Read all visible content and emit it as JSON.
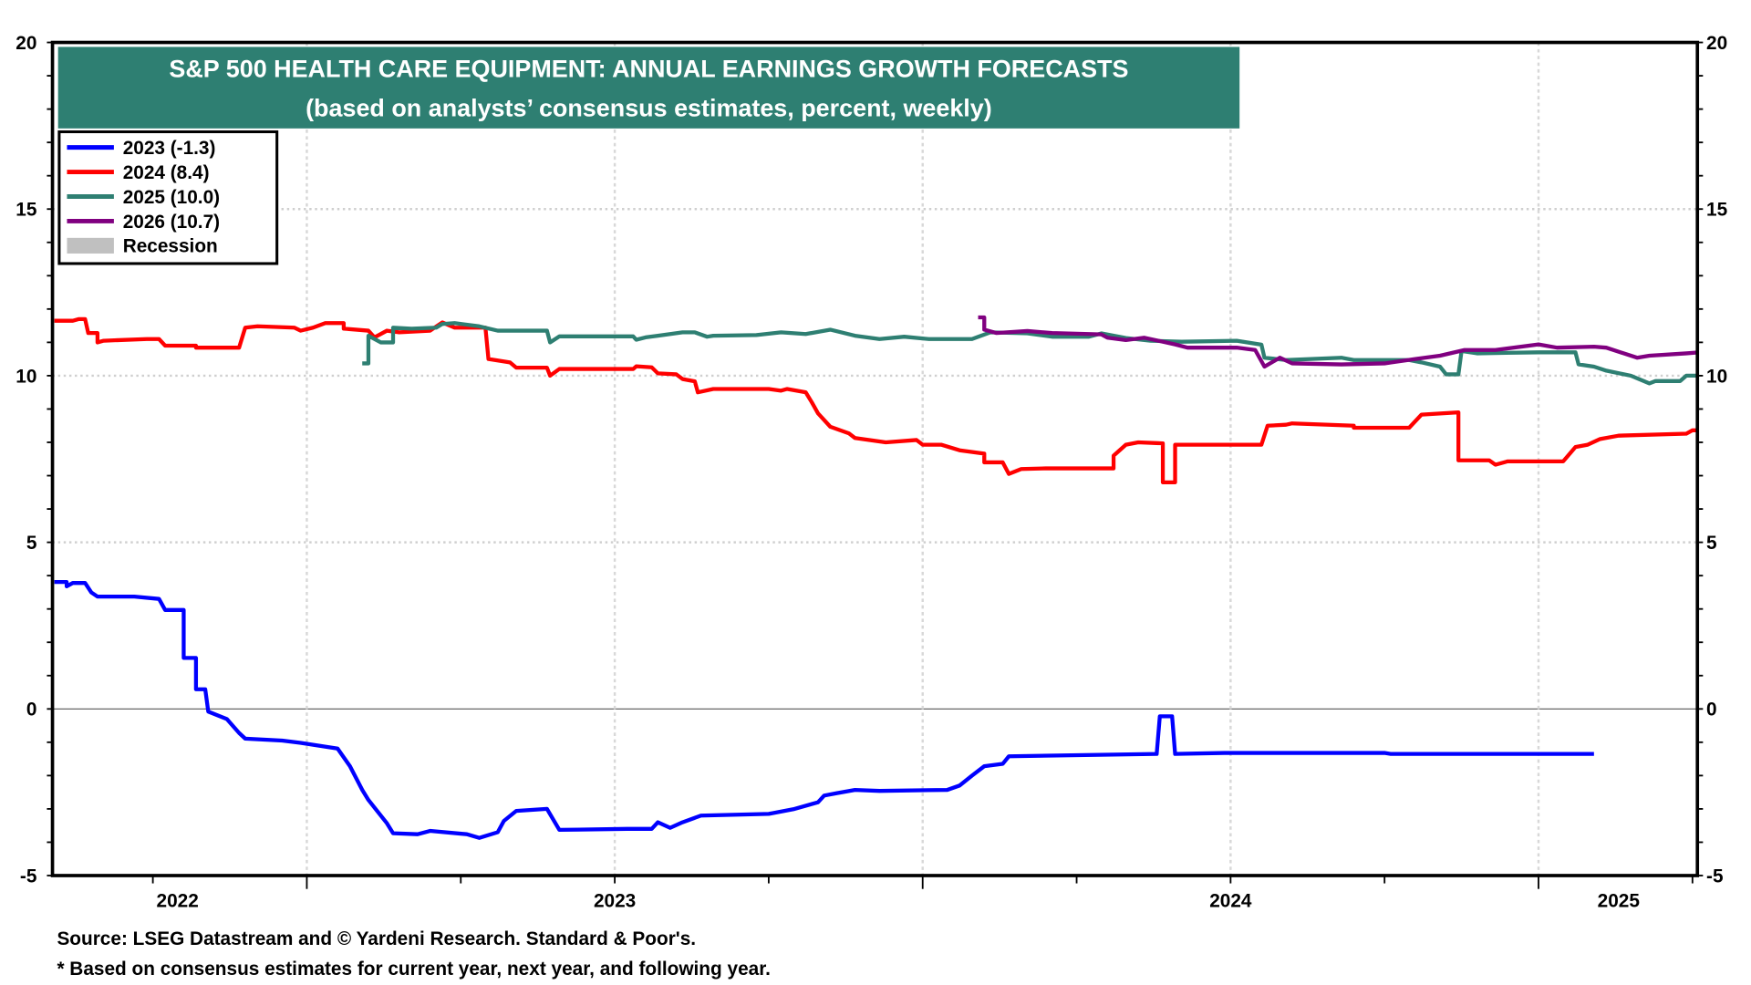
{
  "chart_data": {
    "type": "line",
    "title": "S&P 500 HEALTH CARE EQUIPMENT: ANNUAL EARNINGS GROWTH FORECASTS",
    "subtitle": "(based on analysts’ consensus estimates, percent, weekly)",
    "xlabel": "",
    "ylabel": "",
    "xlim": [
      2022.587,
      2025.258
    ],
    "ylim": [
      -5,
      20
    ],
    "yticks": [
      "20",
      "15",
      "10",
      "5",
      "0",
      "-5"
    ],
    "ytick_values": [
      20,
      15,
      10,
      5,
      0,
      -5
    ],
    "xtick_labels": [
      {
        "label": "2022",
        "at": 2022.79
      },
      {
        "label": "2023",
        "at": 2023.5
      },
      {
        "label": "2024",
        "at": 2024.5
      },
      {
        "label": "2025",
        "at": 2025.13
      }
    ],
    "legend": {
      "placement": "top-left",
      "entries": [
        {
          "label": "2023 (-1.3)",
          "color": "#0000ff"
        },
        {
          "label": "2024 (8.4)",
          "color": "#ff0000"
        },
        {
          "label": "2025 (10.0)",
          "color": "#2e7f72"
        },
        {
          "label": "2026 (10.7)",
          "color": "#800080"
        },
        {
          "label": "Recession",
          "color": "#c0c0c0"
        }
      ]
    },
    "series": [
      {
        "name": "2023",
        "color": "#0000ff",
        "points": [
          [
            2022.59,
            3.81
          ],
          [
            2022.61,
            3.81
          ],
          [
            2022.61,
            3.68
          ],
          [
            2022.62,
            3.78
          ],
          [
            2022.64,
            3.78
          ],
          [
            2022.65,
            3.5
          ],
          [
            2022.66,
            3.37
          ],
          [
            2022.72,
            3.37
          ],
          [
            2022.76,
            3.3
          ],
          [
            2022.77,
            2.97
          ],
          [
            2022.8,
            2.97
          ],
          [
            2022.8,
            1.53
          ],
          [
            2022.82,
            1.53
          ],
          [
            2022.82,
            0.59
          ],
          [
            2022.835,
            0.59
          ],
          [
            2022.84,
            -0.08
          ],
          [
            2022.87,
            -0.3
          ],
          [
            2022.89,
            -0.72
          ],
          [
            2022.9,
            -0.89
          ],
          [
            2022.96,
            -0.95
          ],
          [
            2022.99,
            -1.02
          ],
          [
            2023.05,
            -1.19
          ],
          [
            2023.07,
            -1.72
          ],
          [
            2023.09,
            -2.43
          ],
          [
            2023.1,
            -2.73
          ],
          [
            2023.13,
            -3.43
          ],
          [
            2023.14,
            -3.73
          ],
          [
            2023.18,
            -3.76
          ],
          [
            2023.2,
            -3.66
          ],
          [
            2023.26,
            -3.76
          ],
          [
            2023.28,
            -3.87
          ],
          [
            2023.31,
            -3.7
          ],
          [
            2023.32,
            -3.36
          ],
          [
            2023.34,
            -3.06
          ],
          [
            2023.39,
            -3.0
          ],
          [
            2023.41,
            -3.63
          ],
          [
            2023.52,
            -3.6
          ],
          [
            2023.56,
            -3.6
          ],
          [
            2023.57,
            -3.4
          ],
          [
            2023.59,
            -3.57
          ],
          [
            2023.61,
            -3.4
          ],
          [
            2023.64,
            -3.2
          ],
          [
            2023.75,
            -3.15
          ],
          [
            2023.79,
            -3.01
          ],
          [
            2023.83,
            -2.8
          ],
          [
            2023.84,
            -2.6
          ],
          [
            2023.86,
            -2.53
          ],
          [
            2023.89,
            -2.43
          ],
          [
            2023.93,
            -2.46
          ],
          [
            2024.04,
            -2.43
          ],
          [
            2024.06,
            -2.3
          ],
          [
            2024.08,
            -2.0
          ],
          [
            2024.1,
            -1.72
          ],
          [
            2024.13,
            -1.65
          ],
          [
            2024.14,
            -1.42
          ],
          [
            2024.38,
            -1.35
          ],
          [
            2024.385,
            -0.22
          ],
          [
            2024.405,
            -0.22
          ],
          [
            2024.41,
            -1.35
          ],
          [
            2024.49,
            -1.32
          ],
          [
            2024.75,
            -1.32
          ],
          [
            2024.76,
            -1.35
          ],
          [
            2025.09,
            -1.35
          ]
        ]
      },
      {
        "name": "2024",
        "color": "#ff0000",
        "points": [
          [
            2022.59,
            11.65
          ],
          [
            2022.62,
            11.65
          ],
          [
            2022.63,
            11.7
          ],
          [
            2022.64,
            11.7
          ],
          [
            2022.645,
            11.28
          ],
          [
            2022.66,
            11.28
          ],
          [
            2022.66,
            11.0
          ],
          [
            2022.67,
            11.05
          ],
          [
            2022.74,
            11.1
          ],
          [
            2022.76,
            11.1
          ],
          [
            2022.77,
            10.9
          ],
          [
            2022.82,
            10.9
          ],
          [
            2022.82,
            10.84
          ],
          [
            2022.89,
            10.84
          ],
          [
            2022.9,
            11.44
          ],
          [
            2022.92,
            11.48
          ],
          [
            2022.98,
            11.44
          ],
          [
            2022.99,
            11.35
          ],
          [
            2023.01,
            11.44
          ],
          [
            2023.03,
            11.58
          ],
          [
            2023.06,
            11.58
          ],
          [
            2023.06,
            11.41
          ],
          [
            2023.1,
            11.35
          ],
          [
            2023.11,
            11.15
          ],
          [
            2023.13,
            11.35
          ],
          [
            2023.15,
            11.3
          ],
          [
            2023.2,
            11.35
          ],
          [
            2023.22,
            11.6
          ],
          [
            2023.24,
            11.44
          ],
          [
            2023.29,
            11.44
          ],
          [
            2023.295,
            10.5
          ],
          [
            2023.33,
            10.4
          ],
          [
            2023.34,
            10.24
          ],
          [
            2023.39,
            10.24
          ],
          [
            2023.395,
            10.0
          ],
          [
            2023.41,
            10.2
          ],
          [
            2023.53,
            10.2
          ],
          [
            2023.535,
            10.28
          ],
          [
            2023.56,
            10.25
          ],
          [
            2023.57,
            10.07
          ],
          [
            2023.6,
            10.04
          ],
          [
            2023.61,
            9.9
          ],
          [
            2023.63,
            9.83
          ],
          [
            2023.635,
            9.5
          ],
          [
            2023.66,
            9.6
          ],
          [
            2023.75,
            9.6
          ],
          [
            2023.77,
            9.55
          ],
          [
            2023.78,
            9.6
          ],
          [
            2023.81,
            9.5
          ],
          [
            2023.82,
            9.2
          ],
          [
            2023.83,
            8.87
          ],
          [
            2023.85,
            8.47
          ],
          [
            2023.88,
            8.27
          ],
          [
            2023.89,
            8.13
          ],
          [
            2023.94,
            8.0
          ],
          [
            2023.99,
            8.07
          ],
          [
            2024.0,
            7.93
          ],
          [
            2024.03,
            7.93
          ],
          [
            2024.06,
            7.76
          ],
          [
            2024.1,
            7.66
          ],
          [
            2024.1,
            7.4
          ],
          [
            2024.13,
            7.4
          ],
          [
            2024.14,
            7.05
          ],
          [
            2024.16,
            7.2
          ],
          [
            2024.2,
            7.22
          ],
          [
            2024.31,
            7.22
          ],
          [
            2024.31,
            7.6
          ],
          [
            2024.33,
            7.93
          ],
          [
            2024.35,
            8.0
          ],
          [
            2024.39,
            7.97
          ],
          [
            2024.39,
            6.8
          ],
          [
            2024.41,
            6.8
          ],
          [
            2024.41,
            7.93
          ],
          [
            2024.55,
            7.93
          ],
          [
            2024.56,
            8.5
          ],
          [
            2024.59,
            8.53
          ],
          [
            2024.6,
            8.57
          ],
          [
            2024.7,
            8.5
          ],
          [
            2024.7,
            8.44
          ],
          [
            2024.79,
            8.44
          ],
          [
            2024.81,
            8.83
          ],
          [
            2024.87,
            8.9
          ],
          [
            2024.87,
            7.46
          ],
          [
            2024.92,
            7.46
          ],
          [
            2024.93,
            7.33
          ],
          [
            2024.95,
            7.43
          ],
          [
            2025.04,
            7.43
          ],
          [
            2025.06,
            7.86
          ],
          [
            2025.08,
            7.93
          ],
          [
            2025.1,
            8.1
          ],
          [
            2025.13,
            8.2
          ],
          [
            2025.24,
            8.26
          ],
          [
            2025.25,
            8.36
          ],
          [
            2025.26,
            8.36
          ]
        ]
      },
      {
        "name": "2025",
        "color": "#2e7f72",
        "points": [
          [
            2023.09,
            10.37
          ],
          [
            2023.1,
            10.37
          ],
          [
            2023.1,
            11.2
          ],
          [
            2023.12,
            11.0
          ],
          [
            2023.14,
            11.0
          ],
          [
            2023.14,
            11.44
          ],
          [
            2023.17,
            11.41
          ],
          [
            2023.21,
            11.44
          ],
          [
            2023.22,
            11.55
          ],
          [
            2023.24,
            11.58
          ],
          [
            2023.28,
            11.48
          ],
          [
            2023.31,
            11.35
          ],
          [
            2023.39,
            11.35
          ],
          [
            2023.395,
            11.0
          ],
          [
            2023.41,
            11.18
          ],
          [
            2023.53,
            11.18
          ],
          [
            2023.535,
            11.08
          ],
          [
            2023.55,
            11.15
          ],
          [
            2023.57,
            11.2
          ],
          [
            2023.61,
            11.3
          ],
          [
            2023.63,
            11.3
          ],
          [
            2023.65,
            11.17
          ],
          [
            2023.66,
            11.2
          ],
          [
            2023.73,
            11.22
          ],
          [
            2023.77,
            11.3
          ],
          [
            2023.81,
            11.25
          ],
          [
            2023.85,
            11.38
          ],
          [
            2023.89,
            11.2
          ],
          [
            2023.93,
            11.1
          ],
          [
            2023.97,
            11.17
          ],
          [
            2024.01,
            11.1
          ],
          [
            2024.08,
            11.1
          ],
          [
            2024.11,
            11.3
          ],
          [
            2024.17,
            11.27
          ],
          [
            2024.21,
            11.17
          ],
          [
            2024.27,
            11.17
          ],
          [
            2024.29,
            11.27
          ],
          [
            2024.33,
            11.13
          ],
          [
            2024.37,
            11.05
          ],
          [
            2024.42,
            11.02
          ],
          [
            2024.51,
            11.05
          ],
          [
            2024.55,
            10.93
          ],
          [
            2024.555,
            10.54
          ],
          [
            2024.59,
            10.47
          ],
          [
            2024.68,
            10.54
          ],
          [
            2024.7,
            10.47
          ],
          [
            2024.79,
            10.47
          ],
          [
            2024.81,
            10.4
          ],
          [
            2024.84,
            10.27
          ],
          [
            2024.85,
            10.04
          ],
          [
            2024.87,
            10.04
          ],
          [
            2024.875,
            10.74
          ],
          [
            2024.9,
            10.67
          ],
          [
            2025.0,
            10.7
          ],
          [
            2025.06,
            10.7
          ],
          [
            2025.065,
            10.34
          ],
          [
            2025.09,
            10.27
          ],
          [
            2025.11,
            10.15
          ],
          [
            2025.15,
            10.0
          ],
          [
            2025.18,
            9.77
          ],
          [
            2025.19,
            9.84
          ],
          [
            2025.23,
            9.84
          ],
          [
            2025.24,
            10.0
          ],
          [
            2025.26,
            10.0
          ]
        ]
      },
      {
        "name": "2026",
        "color": "#800080",
        "points": [
          [
            2024.09,
            11.75
          ],
          [
            2024.1,
            11.75
          ],
          [
            2024.1,
            11.38
          ],
          [
            2024.12,
            11.28
          ],
          [
            2024.17,
            11.34
          ],
          [
            2024.21,
            11.28
          ],
          [
            2024.29,
            11.24
          ],
          [
            2024.3,
            11.14
          ],
          [
            2024.33,
            11.07
          ],
          [
            2024.36,
            11.14
          ],
          [
            2024.39,
            11.02
          ],
          [
            2024.41,
            10.94
          ],
          [
            2024.43,
            10.84
          ],
          [
            2024.51,
            10.84
          ],
          [
            2024.54,
            10.77
          ],
          [
            2024.555,
            10.27
          ],
          [
            2024.58,
            10.54
          ],
          [
            2024.6,
            10.37
          ],
          [
            2024.68,
            10.34
          ],
          [
            2024.75,
            10.37
          ],
          [
            2024.8,
            10.5
          ],
          [
            2024.84,
            10.6
          ],
          [
            2024.88,
            10.77
          ],
          [
            2024.93,
            10.77
          ],
          [
            2024.96,
            10.84
          ],
          [
            2025.0,
            10.94
          ],
          [
            2025.03,
            10.84
          ],
          [
            2025.09,
            10.87
          ],
          [
            2025.11,
            10.84
          ],
          [
            2025.16,
            10.54
          ],
          [
            2025.18,
            10.6
          ],
          [
            2025.24,
            10.67
          ],
          [
            2025.26,
            10.7
          ]
        ]
      }
    ],
    "grid": true
  },
  "footer": {
    "source": "Source: LSEG Datastream and © Yardeni Research. Standard & Poor's.",
    "note": "* Based on consensus estimates for current year, next year, and following year."
  }
}
